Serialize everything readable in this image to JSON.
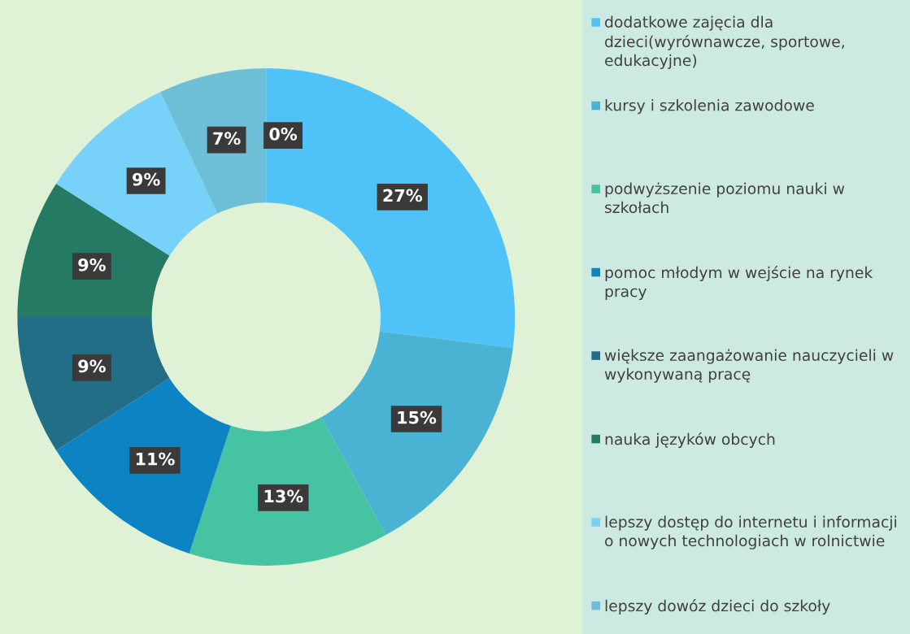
{
  "chart_data": {
    "type": "donut",
    "categories": [
      "dodatkowe zajęcia dla dzieci(wyrównawcze, sportowe, edukacyjne)",
      "kursy i szkolenia zawodowe",
      "podwyższenie poziomu nauki w szkołach",
      "pomoc młodym w wejście na rynek pracy",
      "większe zaangażowanie nauczycieli w wykonywaną pracę",
      "nauka języków obcych",
      "lepszy dostęp do internetu i informacji o nowych technologiach w rolnictwie",
      "lepszy dowóz dzieci do szkoły",
      null
    ],
    "values": [
      27,
      15,
      13,
      11,
      9,
      9,
      9,
      7,
      0
    ],
    "value_labels": [
      "27%",
      "15%",
      "13%",
      "11%",
      "9%",
      "9%",
      "9%",
      "7%",
      "0%"
    ],
    "colors": [
      "#4fc2f7",
      "#4ab3d3",
      "#45c3a3",
      "#0c83c2",
      "#216e86",
      "#247a63",
      "#78d1f8",
      "#6dbfd8",
      "#3a9fc4"
    ],
    "legend": "right"
  }
}
